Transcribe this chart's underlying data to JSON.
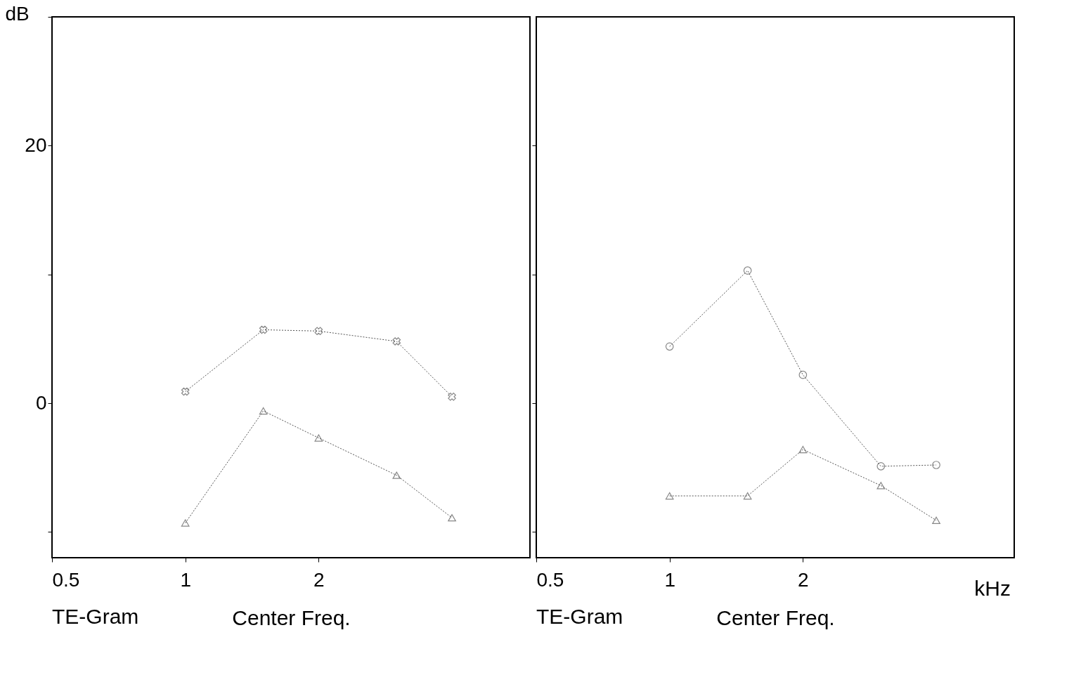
{
  "chart_data": [
    {
      "type": "line",
      "xlabel": "Center Freq.",
      "ylabel": "dB",
      "log": "x",
      "grid": false,
      "xlim": [
        0.5,
        6
      ],
      "xticks": [
        0.5,
        1,
        2
      ],
      "ylim": [
        -12,
        30
      ],
      "yticks": [
        {
          "value": 30,
          "label": null
        },
        20,
        {
          "value": 10,
          "label": null
        },
        0,
        {
          "value": -10,
          "label": null
        }
      ],
      "annotations": [
        "TE-Gram"
      ],
      "series": [
        {
          "color": "#555555",
          "marker": "cross",
          "line_style": "dotted",
          "x": [
            1,
            1.5,
            2,
            3,
            4
          ],
          "values": [
            0.9,
            5.7,
            5.6,
            4.8,
            0.5
          ]
        },
        {
          "color": "#555555",
          "marker": "triangle",
          "line_style": "dotted",
          "x": [
            1,
            1.5,
            2,
            3,
            4
          ],
          "values": [
            -9.3,
            -0.6,
            -2.7,
            -5.6,
            -8.9
          ]
        }
      ]
    },
    {
      "type": "line",
      "xlabel": "Center Freq.",
      "log": "x",
      "grid": false,
      "tick_labels": "x",
      "xlim": [
        0.5,
        6
      ],
      "xticks": [
        0.5,
        1,
        2
      ],
      "ylim": [
        -12,
        30
      ],
      "yticks": [
        20,
        10,
        0,
        -10
      ],
      "annotations": [
        "TE-Gram",
        "kHz"
      ],
      "series": [
        {
          "color": "#555555",
          "marker": "circle",
          "line_style": "dotted",
          "x": [
            1,
            1.5,
            2,
            3,
            4
          ],
          "values": [
            4.4,
            10.3,
            2.2,
            -4.9,
            -4.8
          ]
        },
        {
          "color": "#555555",
          "marker": "triangle",
          "line_style": "dotted",
          "x": [
            1,
            1.5,
            2,
            3,
            4
          ],
          "values": [
            -7.2,
            -7.2,
            -3.6,
            -6.4,
            -9.1
          ]
        }
      ]
    }
  ]
}
